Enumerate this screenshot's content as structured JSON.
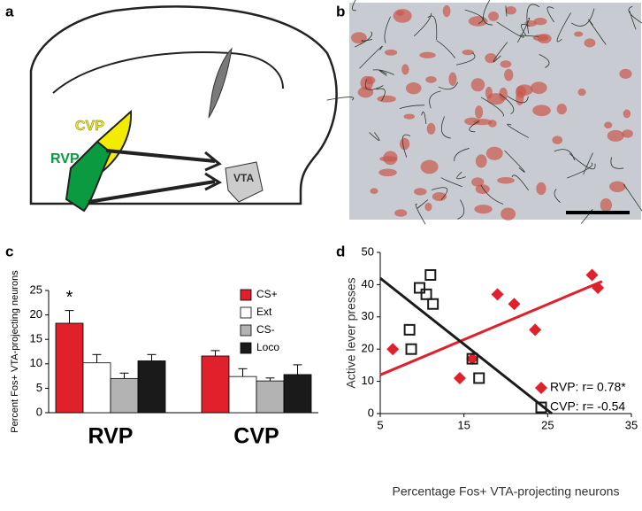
{
  "panel_labels": [
    "a",
    "b",
    "c",
    "d"
  ],
  "diagram": {
    "labels": [
      "CVP",
      "RVP",
      "VTA"
    ]
  },
  "chart_data": [
    {
      "type": "bar",
      "ylabel": "Percent Fos+ VTA-projecting neurons",
      "annotation": "*",
      "categories": [
        "RVP",
        "CVP"
      ],
      "series": [
        {
          "name": "CS+",
          "color": "#e0202a",
          "values": [
            18.3,
            11.6
          ],
          "errors": [
            2.6,
            1.1
          ]
        },
        {
          "name": "Ext",
          "color": "#ffffff",
          "values": [
            10.2,
            7.4
          ],
          "errors": [
            1.7,
            1.6
          ]
        },
        {
          "name": "CS-",
          "color": "#b3b3b3",
          "values": [
            7.0,
            6.5
          ],
          "errors": [
            1.1,
            0.6
          ]
        },
        {
          "name": "Loco",
          "color": "#1a1a1a",
          "values": [
            10.6,
            7.8
          ],
          "errors": [
            1.3,
            2.0
          ]
        }
      ],
      "ylim": [
        0,
        25
      ],
      "yticks": [
        0,
        5,
        10,
        15,
        20,
        25
      ]
    },
    {
      "type": "scatter",
      "xlabel": "Percentage Fos+ VTA-projecting neurons",
      "ylabel": "Active lever presses",
      "series": [
        {
          "name": "RVP: r= 0.78*",
          "color": "#e0202a",
          "marker": "diamond",
          "x": [
            6.5,
            14.5,
            16,
            19,
            21,
            23.5,
            30.3,
            31
          ],
          "values": [
            20,
            11,
            17,
            37,
            34,
            26,
            43,
            39
          ],
          "fit": {
            "x": [
              5,
              31.5
            ],
            "values": [
              12,
              41
            ]
          }
        },
        {
          "name": "CVP: r= -0.54",
          "color": "#1a1a1a",
          "marker": "square",
          "x": [
            8.5,
            8.7,
            9.7,
            10.5,
            11,
            11.3,
            16,
            16.8
          ],
          "values": [
            26,
            20,
            39,
            37,
            43,
            34,
            17,
            11
          ],
          "fit": {
            "x": [
              5,
              25.5
            ],
            "values": [
              42,
              0
            ]
          }
        }
      ],
      "xlim": [
        5,
        35
      ],
      "xticks": [
        5,
        15,
        25,
        35
      ],
      "ylim": [
        0,
        50
      ],
      "yticks": [
        0,
        10,
        20,
        30,
        40,
        50
      ]
    }
  ]
}
